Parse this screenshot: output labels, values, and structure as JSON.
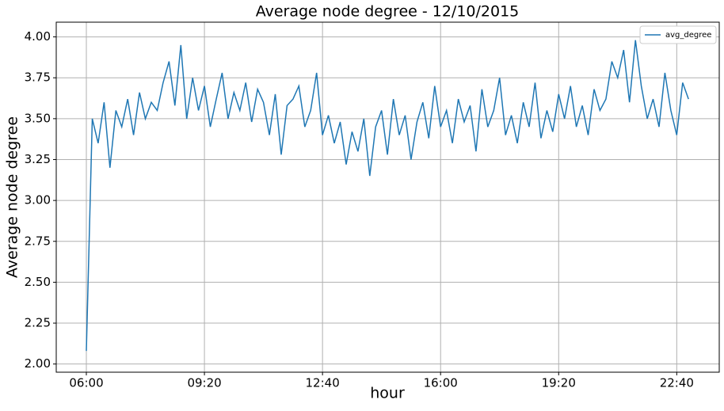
{
  "chart_data": {
    "type": "line",
    "title": "Average node degree - 12/10/2015",
    "xlabel": "hour",
    "ylabel": "Average node degree",
    "x": [
      "06:00",
      "06:10",
      "06:20",
      "06:30",
      "06:40",
      "06:50",
      "07:00",
      "07:10",
      "07:20",
      "07:30",
      "07:40",
      "07:50",
      "08:00",
      "08:10",
      "08:20",
      "08:30",
      "08:40",
      "08:50",
      "09:00",
      "09:10",
      "09:20",
      "09:30",
      "09:40",
      "09:50",
      "10:00",
      "10:10",
      "10:20",
      "10:30",
      "10:40",
      "10:50",
      "11:00",
      "11:10",
      "11:20",
      "11:30",
      "11:40",
      "11:50",
      "12:00",
      "12:10",
      "12:20",
      "12:30",
      "12:40",
      "12:50",
      "13:00",
      "13:10",
      "13:20",
      "13:30",
      "13:40",
      "13:50",
      "14:00",
      "14:10",
      "14:20",
      "14:30",
      "14:40",
      "14:50",
      "15:00",
      "15:10",
      "15:20",
      "15:30",
      "15:40",
      "15:50",
      "16:00",
      "16:10",
      "16:20",
      "16:30",
      "16:40",
      "16:50",
      "17:00",
      "17:10",
      "17:20",
      "17:30",
      "17:40",
      "17:50",
      "18:00",
      "18:10",
      "18:20",
      "18:30",
      "18:40",
      "18:50",
      "19:00",
      "19:10",
      "19:20",
      "19:30",
      "19:40",
      "19:50",
      "20:00",
      "20:10",
      "20:20",
      "20:30",
      "20:40",
      "20:50",
      "21:00",
      "21:10",
      "21:20",
      "21:30",
      "21:40",
      "21:50",
      "22:00",
      "22:10",
      "22:20",
      "22:30",
      "22:40",
      "22:50",
      "23:00"
    ],
    "series": [
      {
        "name": "avg_degree",
        "color": "#1f77b4",
        "values": [
          2.08,
          3.5,
          3.35,
          3.6,
          3.2,
          3.55,
          3.45,
          3.62,
          3.4,
          3.66,
          3.5,
          3.6,
          3.55,
          3.72,
          3.85,
          3.58,
          3.95,
          3.5,
          3.75,
          3.55,
          3.7,
          3.45,
          3.62,
          3.78,
          3.5,
          3.66,
          3.55,
          3.72,
          3.48,
          3.68,
          3.6,
          3.4,
          3.65,
          3.28,
          3.58,
          3.62,
          3.7,
          3.45,
          3.55,
          3.78,
          3.4,
          3.52,
          3.35,
          3.48,
          3.22,
          3.42,
          3.3,
          3.5,
          3.15,
          3.45,
          3.55,
          3.28,
          3.62,
          3.4,
          3.52,
          3.25,
          3.48,
          3.6,
          3.38,
          3.7,
          3.45,
          3.55,
          3.35,
          3.62,
          3.48,
          3.58,
          3.3,
          3.68,
          3.45,
          3.55,
          3.75,
          3.4,
          3.52,
          3.35,
          3.6,
          3.45,
          3.72,
          3.38,
          3.55,
          3.42,
          3.65,
          3.5,
          3.7,
          3.45,
          3.58,
          3.4,
          3.68,
          3.55,
          3.62,
          3.85,
          3.75,
          3.92,
          3.6,
          3.98,
          3.7,
          3.5,
          3.62,
          3.45,
          3.78,
          3.55,
          3.4,
          3.72,
          3.62
        ]
      }
    ],
    "xlim": [
      "05:09",
      "23:52"
    ],
    "xticks": [
      "06:00",
      "09:20",
      "12:40",
      "16:00",
      "19:20",
      "22:40"
    ],
    "ylim": [
      1.95,
      4.09
    ],
    "yticks": [
      {
        "value": 2,
        "label": "2.00"
      },
      {
        "value": 2.25,
        "label": "2.25"
      },
      {
        "value": 2.5,
        "label": "2.50"
      },
      {
        "value": 2.75,
        "label": "2.75"
      },
      {
        "value": 3,
        "label": "3.00"
      },
      {
        "value": 3.25,
        "label": "3.25"
      },
      {
        "value": 3.5,
        "label": "3.50"
      },
      {
        "value": 3.75,
        "label": "3.75"
      },
      {
        "value": 4,
        "label": "4.00"
      }
    ],
    "grid": true,
    "legend": "upper right"
  }
}
